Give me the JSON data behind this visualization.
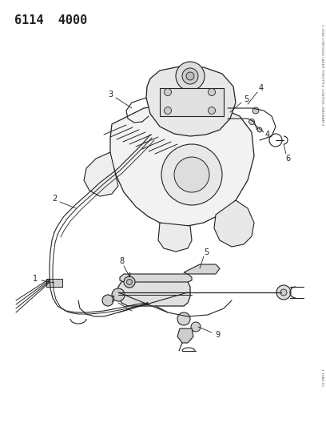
{
  "title": "6114  4000",
  "title_fontsize": 11,
  "title_fontweight": "bold",
  "title_family": "monospace",
  "bg_color": "#ffffff",
  "line_color": "#222222",
  "label_color": "#222222",
  "figsize": [
    4.08,
    5.33
  ],
  "dpi": 100,
  "right_text": "1 1986 CHRYSLER LASER THROTTLE CONTROL DIAGRAM 2",
  "bottom_right_text": "1 1986-01"
}
